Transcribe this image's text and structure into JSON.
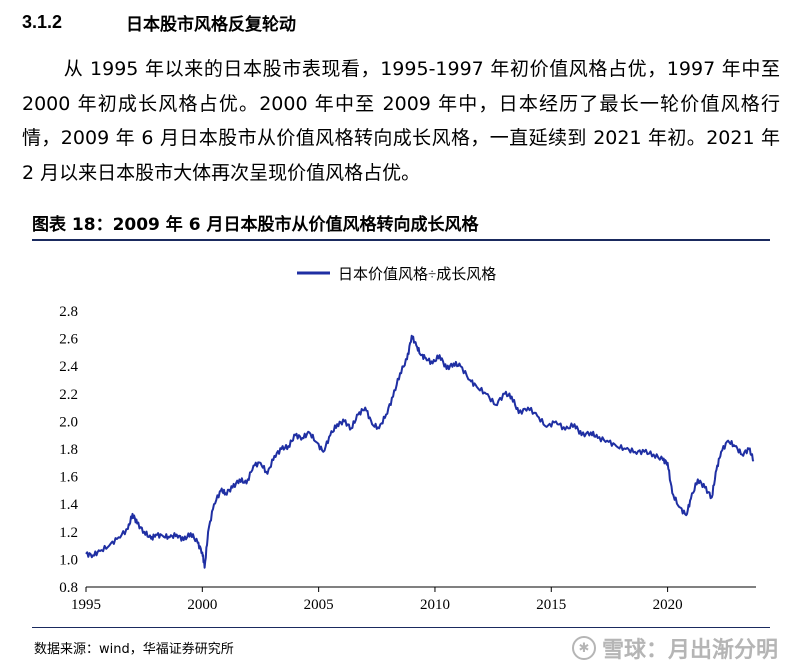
{
  "section": {
    "number": "3.1.2",
    "title": "日本股市风格反复轮动"
  },
  "paragraph": "从 1995 年以来的日本股市表现看，1995-1997 年初价值风格占优，1997 年中至 2000 年初成长风格占优。2000 年中至 2009 年中，日本经历了最长一轮价值风格行情，2009 年 6 月日本股市从价值风格转向成长风格，一直延续到 2021 年初。2021 年 2 月以来日本股市大体再次呈现价值风格占优。",
  "figure_caption": "图表 18：2009 年 6 月日本股市从价值风格转向成长风格",
  "source": "数据来源：wind，华福证券研究所",
  "watermark": {
    "icon": "snowball-icon",
    "text": "雪球：月出渐分明"
  },
  "colors": {
    "series": "#1f2fa3",
    "rule": "#1a2a5e"
  },
  "chart_data": {
    "type": "line",
    "legend_position": "top-center",
    "grid": false,
    "ylim": [
      0.8,
      2.8
    ],
    "xlim": [
      1995,
      2023.8
    ],
    "yticks": [
      "0.8",
      "1.0",
      "1.2",
      "1.4",
      "1.6",
      "1.8",
      "2.0",
      "2.2",
      "2.4",
      "2.6",
      "2.8"
    ],
    "xticks": [
      "1995",
      "2000",
      "2005",
      "2010",
      "2015",
      "2020"
    ],
    "series": [
      {
        "name": "日本价值风格÷成长风格",
        "x": [
          1995.0,
          1995.3,
          1995.6,
          1996.0,
          1996.4,
          1996.8,
          1997.0,
          1997.2,
          1997.5,
          1997.8,
          1998.0,
          1998.3,
          1998.6,
          1998.9,
          1999.2,
          1999.5,
          1999.8,
          2000.0,
          2000.1,
          2000.25,
          2000.5,
          2000.8,
          2001.0,
          2001.3,
          2001.6,
          2001.9,
          2002.2,
          2002.5,
          2002.8,
          2003.1,
          2003.4,
          2003.7,
          2004.0,
          2004.3,
          2004.6,
          2004.9,
          2005.2,
          2005.5,
          2005.8,
          2006.1,
          2006.4,
          2006.7,
          2007.0,
          2007.3,
          2007.6,
          2007.9,
          2008.2,
          2008.5,
          2008.8,
          2009.0,
          2009.2,
          2009.4,
          2009.6,
          2009.9,
          2010.2,
          2010.5,
          2010.8,
          2011.1,
          2011.5,
          2011.8,
          2012.2,
          2012.6,
          2013.0,
          2013.3,
          2013.6,
          2014.0,
          2014.4,
          2014.8,
          2015.2,
          2015.6,
          2016.0,
          2016.3,
          2016.7,
          2017.0,
          2017.4,
          2017.8,
          2018.2,
          2018.6,
          2019.0,
          2019.4,
          2019.8,
          2020.0,
          2020.2,
          2020.5,
          2020.8,
          2021.0,
          2021.3,
          2021.6,
          2021.9,
          2022.1,
          2022.3,
          2022.6,
          2022.9,
          2023.2,
          2023.5,
          2023.7
        ],
        "y": [
          1.04,
          1.03,
          1.06,
          1.1,
          1.16,
          1.22,
          1.33,
          1.26,
          1.2,
          1.15,
          1.18,
          1.17,
          1.16,
          1.18,
          1.14,
          1.19,
          1.12,
          1.05,
          0.94,
          1.2,
          1.4,
          1.5,
          1.48,
          1.52,
          1.58,
          1.55,
          1.68,
          1.7,
          1.62,
          1.75,
          1.8,
          1.82,
          1.9,
          1.88,
          1.92,
          1.85,
          1.78,
          1.9,
          1.98,
          2.0,
          1.95,
          2.05,
          2.1,
          1.98,
          1.95,
          2.05,
          2.18,
          2.35,
          2.45,
          2.62,
          2.55,
          2.48,
          2.46,
          2.42,
          2.48,
          2.38,
          2.42,
          2.4,
          2.3,
          2.25,
          2.2,
          2.12,
          2.2,
          2.18,
          2.06,
          2.1,
          2.04,
          1.96,
          2.0,
          1.94,
          1.98,
          1.9,
          1.92,
          1.88,
          1.86,
          1.82,
          1.8,
          1.78,
          1.78,
          1.76,
          1.72,
          1.7,
          1.48,
          1.38,
          1.32,
          1.44,
          1.58,
          1.52,
          1.45,
          1.65,
          1.78,
          1.86,
          1.82,
          1.76,
          1.8,
          1.72
        ]
      }
    ]
  }
}
